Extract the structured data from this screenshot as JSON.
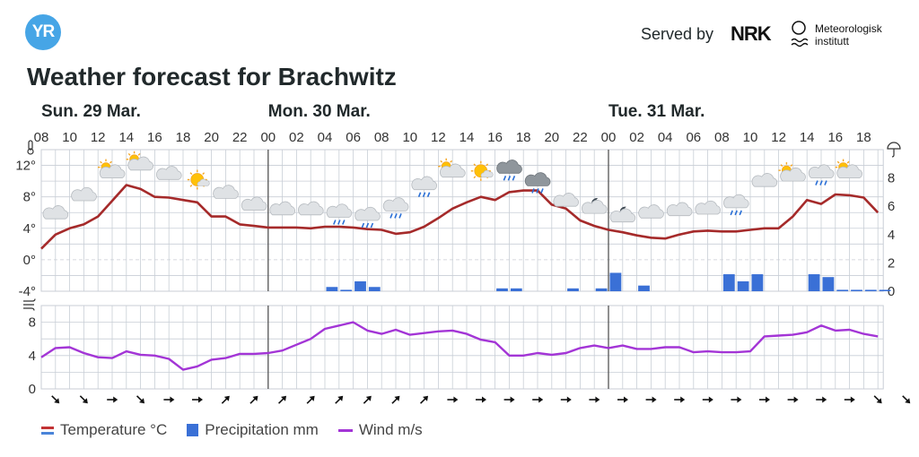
{
  "header": {
    "logo_text": "YR",
    "served_by": "Served by",
    "nrk_text": "NRK",
    "met_text_line1": "Meteorologisk",
    "met_text_line2": "institutt"
  },
  "title": "Weather forecast for Brachwitz",
  "days": [
    {
      "label": "Sun. 29 Mar.",
      "start_index": 0
    },
    {
      "label": "Mon. 30 Mar.",
      "start_index": 8
    },
    {
      "label": "Tue. 31 Mar.",
      "start_index": 20
    }
  ],
  "legend": {
    "temperature": "Temperature °C",
    "precipitation": "Precipitation mm",
    "wind": "Wind m/s"
  },
  "colors": {
    "temperature": "#a52a2a",
    "precipitation": "#3a70d6",
    "wind": "#a335d6",
    "grid": "#c8ced6",
    "day_separator": "#555555"
  },
  "chart_data": [
    {
      "type": "line",
      "title": "",
      "x_hour_labels": [
        "08",
        "10",
        "12",
        "14",
        "16",
        "18",
        "20",
        "22",
        "00",
        "02",
        "04",
        "06",
        "08",
        "10",
        "12",
        "14",
        "16",
        "18",
        "20",
        "22",
        "00",
        "02",
        "04",
        "06",
        "08",
        "10",
        "12",
        "14",
        "16",
        "18"
      ],
      "x_range_hours": [
        0,
        59
      ],
      "series": [
        {
          "name": "Temperature °C",
          "x": [
            0,
            1,
            2,
            3,
            4,
            5,
            6,
            7,
            8,
            9,
            10,
            11,
            12,
            13,
            14,
            15,
            16,
            17,
            18,
            19,
            20,
            21,
            22,
            23,
            24,
            25,
            26,
            27,
            28,
            29,
            30,
            31,
            32,
            33,
            34,
            35,
            36,
            37,
            38,
            39,
            40,
            41,
            42,
            43,
            44,
            45,
            46,
            47,
            48,
            49,
            50,
            51,
            52,
            53,
            54,
            55,
            56,
            57,
            58,
            59
          ],
          "values": [
            1.4,
            3.2,
            4.0,
            4.5,
            5.5,
            7.5,
            9.5,
            9.0,
            8.0,
            7.9,
            7.6,
            7.3,
            5.5,
            5.5,
            4.5,
            4.3,
            4.1,
            4.1,
            4.1,
            4.0,
            4.2,
            4.2,
            4.1,
            3.9,
            3.8,
            3.3,
            3.5,
            4.2,
            5.3,
            6.5,
            7.3,
            8.0,
            7.6,
            8.6,
            8.8,
            8.8,
            7.0,
            6.5,
            5.0,
            4.3,
            3.8,
            3.5,
            3.1,
            2.8,
            2.7,
            3.2,
            3.6,
            3.7,
            3.6,
            3.6,
            3.8,
            4.0,
            4.0,
            5.5,
            7.6,
            7.1,
            8.3,
            8.2,
            7.9,
            6.0
          ]
        }
      ],
      "ylim": [
        -4,
        14
      ],
      "yticks_left": [
        "12°",
        "8°",
        "4°",
        "0°",
        "-4°"
      ],
      "yticks_left_values": [
        12,
        8,
        4,
        0,
        -4
      ],
      "yticks_right": [
        "8",
        "6",
        "4",
        "2",
        "0"
      ],
      "yticks_right_values": [
        8,
        6,
        4,
        2,
        0
      ],
      "secondary_series": {
        "name": "Precipitation mm",
        "type": "bar",
        "ylim": [
          0,
          10
        ],
        "x": [
          20,
          21,
          22,
          23,
          32,
          33,
          37,
          39,
          40,
          42,
          48,
          49,
          50,
          54,
          55,
          56,
          57,
          58,
          59
        ],
        "values": [
          0.3,
          0.1,
          0.7,
          0.3,
          0.2,
          0.2,
          0.2,
          0.2,
          1.3,
          0.4,
          1.2,
          0.7,
          1.2,
          1.2,
          1.0,
          0.1,
          0.1,
          0.1,
          0.1
        ]
      },
      "weather_icons": [
        {
          "x": 1,
          "temp": 6.0,
          "icon": "cloud"
        },
        {
          "x": 3,
          "temp": 8.3,
          "icon": "cloud"
        },
        {
          "x": 5,
          "temp": 11.2,
          "icon": "partly-cloudy"
        },
        {
          "x": 7,
          "temp": 12.2,
          "icon": "partly-cloudy"
        },
        {
          "x": 9,
          "temp": 11.0,
          "icon": "cloud"
        },
        {
          "x": 11,
          "temp": 10.3,
          "icon": "fair-day"
        },
        {
          "x": 13,
          "temp": 8.6,
          "icon": "cloud"
        },
        {
          "x": 15,
          "temp": 7.1,
          "icon": "cloud"
        },
        {
          "x": 17,
          "temp": 6.5,
          "icon": "cloud"
        },
        {
          "x": 19,
          "temp": 6.5,
          "icon": "cloud"
        },
        {
          "x": 21,
          "temp": 6.2,
          "icon": "rain-cloud"
        },
        {
          "x": 23,
          "temp": 5.8,
          "icon": "rain-cloud"
        },
        {
          "x": 25,
          "temp": 7.0,
          "icon": "rain-cloud"
        },
        {
          "x": 27,
          "temp": 9.7,
          "icon": "rain-cloud"
        },
        {
          "x": 29,
          "temp": 11.3,
          "icon": "partly-cloudy"
        },
        {
          "x": 31,
          "temp": 11.4,
          "icon": "fair-day"
        },
        {
          "x": 33,
          "temp": 11.8,
          "icon": "rain-cloud-dark"
        },
        {
          "x": 35,
          "temp": 10.2,
          "icon": "rain-cloud-dark"
        },
        {
          "x": 37,
          "temp": 7.6,
          "icon": "cloud"
        },
        {
          "x": 39,
          "temp": 6.7,
          "icon": "partly-cloudy-night"
        },
        {
          "x": 41,
          "temp": 5.6,
          "icon": "partly-cloudy-night"
        },
        {
          "x": 43,
          "temp": 6.1,
          "icon": "cloud"
        },
        {
          "x": 45,
          "temp": 6.4,
          "icon": "cloud"
        },
        {
          "x": 47,
          "temp": 6.6,
          "icon": "cloud"
        },
        {
          "x": 49,
          "temp": 7.4,
          "icon": "rain-cloud"
        },
        {
          "x": 51,
          "temp": 10.1,
          "icon": "cloud"
        },
        {
          "x": 53,
          "temp": 10.8,
          "icon": "partly-cloudy"
        },
        {
          "x": 55,
          "temp": 11.2,
          "icon": "rain-cloud"
        },
        {
          "x": 57,
          "temp": 11.2,
          "icon": "partly-cloudy"
        }
      ]
    },
    {
      "type": "line",
      "title": "",
      "series": [
        {
          "name": "Wind m/s",
          "x": [
            0,
            1,
            2,
            3,
            4,
            5,
            6,
            7,
            8,
            9,
            10,
            11,
            12,
            13,
            14,
            15,
            16,
            17,
            18,
            19,
            20,
            21,
            22,
            23,
            24,
            25,
            26,
            27,
            28,
            29,
            30,
            31,
            32,
            33,
            34,
            35,
            36,
            37,
            38,
            39,
            40,
            41,
            42,
            43,
            44,
            45,
            46,
            47,
            48,
            49,
            50,
            51,
            52,
            53,
            54,
            55,
            56,
            57,
            58,
            59
          ],
          "values": [
            3.8,
            4.9,
            5.0,
            4.3,
            3.8,
            3.7,
            4.5,
            4.1,
            4.0,
            3.6,
            2.3,
            2.7,
            3.5,
            3.7,
            4.2,
            4.2,
            4.3,
            4.6,
            5.3,
            6.0,
            7.2,
            7.6,
            8.0,
            7.0,
            6.6,
            7.1,
            6.5,
            6.7,
            6.9,
            7.0,
            6.6,
            5.9,
            5.6,
            4.0,
            4.0,
            4.3,
            4.1,
            4.3,
            4.9,
            5.2,
            4.9,
            5.2,
            4.8,
            4.8,
            5.0,
            5.0,
            4.4,
            4.5,
            4.4,
            4.4,
            4.5,
            6.3,
            6.4,
            6.5,
            6.8,
            7.6,
            7.0,
            7.1,
            6.6,
            6.3
          ]
        }
      ],
      "ylim": [
        0,
        10
      ],
      "yticks": [
        "8",
        "4",
        "0"
      ],
      "yticks_values": [
        8,
        4,
        0
      ],
      "wind_direction_arrows": [
        "se",
        "se",
        "e",
        "se",
        "e",
        "e",
        "ne",
        "ne",
        "ne",
        "ne",
        "ne",
        "ne",
        "ne",
        "ne",
        "e",
        "e",
        "e",
        "e",
        "e",
        "e",
        "e",
        "e",
        "e",
        "e",
        "e",
        "e",
        "e",
        "e",
        "e",
        "se",
        "se"
      ]
    }
  ]
}
